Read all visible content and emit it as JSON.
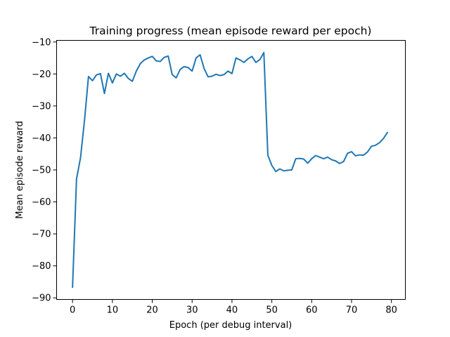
{
  "chart_data": {
    "type": "line",
    "title": "Training progress (mean episode reward per epoch)",
    "xlabel": "Epoch (per debug interval)",
    "ylabel": "Mean episode reward",
    "xlim": [
      -4,
      83.5
    ],
    "ylim": [
      -90.5,
      -9.5
    ],
    "xticks": [
      0,
      10,
      20,
      30,
      40,
      50,
      60,
      70,
      80
    ],
    "yticks": [
      -90,
      -80,
      -70,
      -60,
      -50,
      -40,
      -30,
      -20,
      -10
    ],
    "xtick_labels": [
      "0",
      "10",
      "20",
      "30",
      "40",
      "50",
      "60",
      "70",
      "80"
    ],
    "ytick_labels": [
      "−90",
      "−80",
      "−70",
      "−60",
      "−50",
      "−40",
      "−30",
      "−20",
      "−10"
    ],
    "grid": false,
    "series": [
      {
        "color": "#1f77b4",
        "x": [
          0,
          1,
          2,
          3,
          4,
          5,
          6,
          7,
          8,
          9,
          10,
          11,
          12,
          13,
          14,
          15,
          16,
          17,
          18,
          19,
          20,
          21,
          22,
          23,
          24,
          25,
          26,
          27,
          28,
          29,
          30,
          31,
          32,
          33,
          34,
          35,
          36,
          37,
          38,
          39,
          40,
          41,
          42,
          43,
          44,
          45,
          46,
          47,
          48,
          49,
          50,
          51,
          52,
          53,
          54,
          55,
          56,
          57,
          58,
          59,
          60,
          61,
          62,
          63,
          64,
          65,
          66,
          67,
          68,
          69,
          70,
          71,
          72,
          73,
          74,
          75,
          76,
          77,
          78,
          79
        ],
        "y": [
          -86.7,
          -52.8,
          -46.2,
          -34.5,
          -20.8,
          -22.1,
          -20.3,
          -19.9,
          -26.1,
          -19.8,
          -22.8,
          -20.0,
          -20.7,
          -19.8,
          -21.4,
          -22.3,
          -19.1,
          -16.8,
          -15.6,
          -15.0,
          -14.5,
          -15.9,
          -16.1,
          -14.8,
          -14.4,
          -20.2,
          -21.2,
          -18.6,
          -17.7,
          -18.0,
          -19.1,
          -15.0,
          -14.0,
          -18.3,
          -20.9,
          -20.7,
          -20.1,
          -20.5,
          -20.2,
          -19.1,
          -19.9,
          -15.0,
          -15.6,
          -16.4,
          -15.3,
          -14.5,
          -16.4,
          -15.5,
          -13.3,
          -45.4,
          -48.6,
          -50.5,
          -49.7,
          -50.3,
          -50.1,
          -50.0,
          -46.5,
          -46.4,
          -46.6,
          -47.9,
          -46.5,
          -45.5,
          -46.0,
          -46.5,
          -46.0,
          -46.8,
          -47.2,
          -48.0,
          -47.4,
          -44.8,
          -44.3,
          -45.6,
          -45.3,
          -45.4,
          -44.4,
          -42.6,
          -42.3,
          -41.5,
          -40.2,
          -38.3
        ]
      }
    ]
  }
}
